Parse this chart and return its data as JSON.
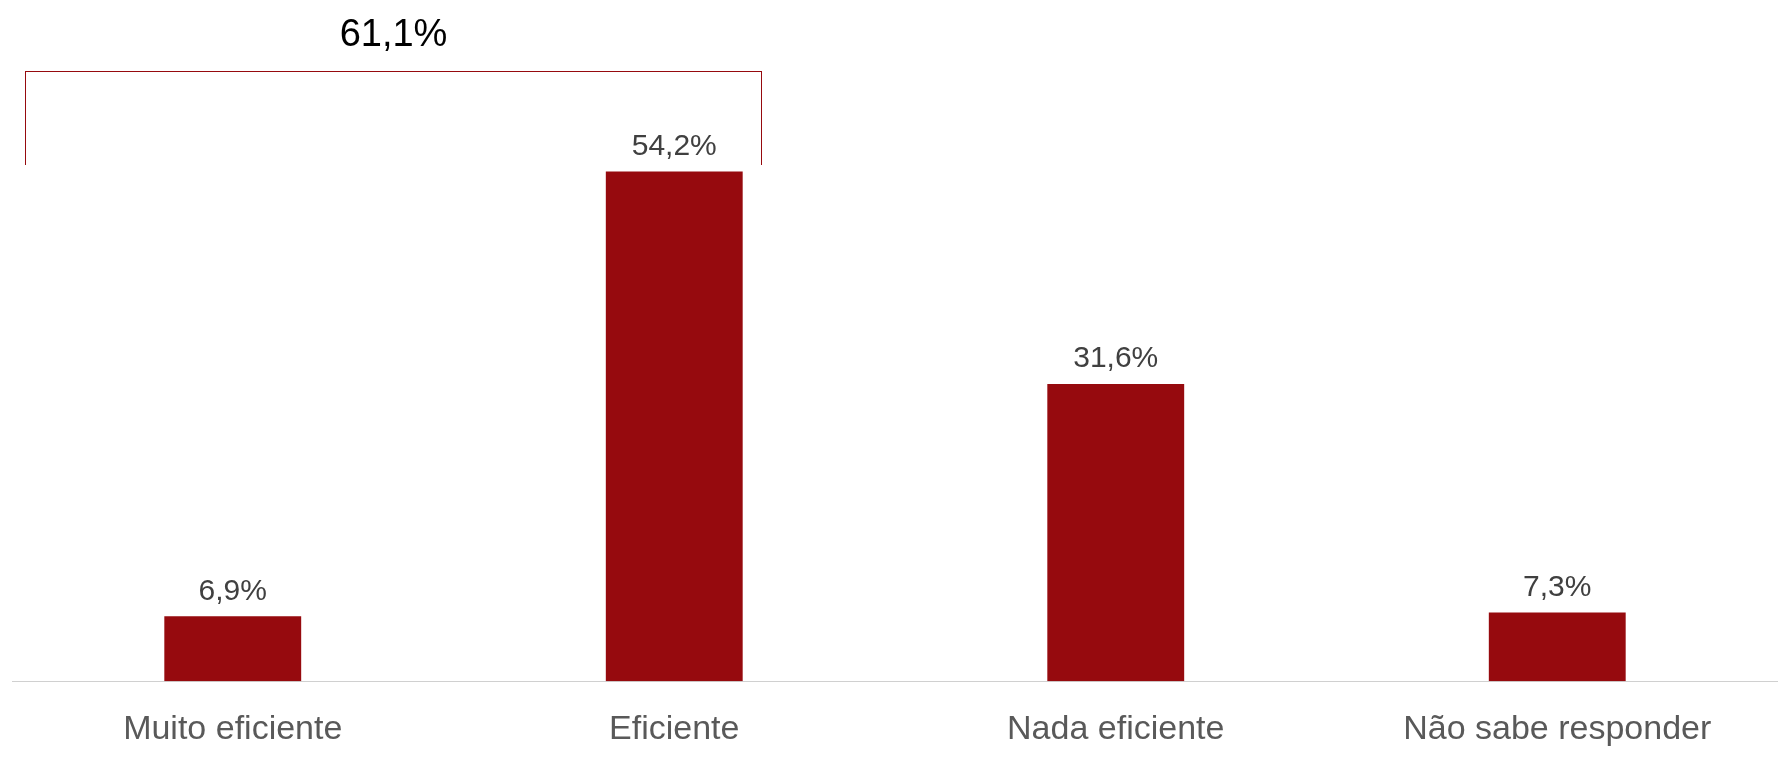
{
  "chart_data": {
    "type": "bar",
    "categories": [
      "Muito eficiente",
      "Eficiente",
      "Nada eficiente",
      "Não sabe responder"
    ],
    "values": [
      6.9,
      54.2,
      31.6,
      7.3
    ],
    "value_labels": [
      "6,9%",
      "54,2%",
      "31,6%",
      "7,3%"
    ],
    "color": "#960a0e",
    "annotations": [
      "61,1%"
    ],
    "grid": false,
    "legend": false
  }
}
